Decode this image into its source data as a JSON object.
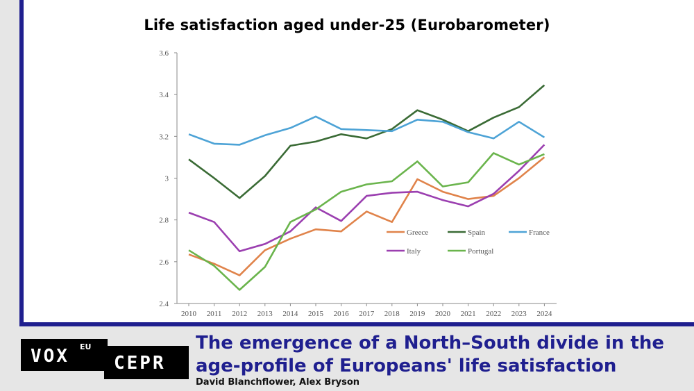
{
  "chart_data": {
    "type": "line",
    "title": "Life satisfaction aged under-25 (Eurobarometer)",
    "x": [
      "2010",
      "2011",
      "2012",
      "2013",
      "2014",
      "2015",
      "2016",
      "2017",
      "2018",
      "2019",
      "2020",
      "2021",
      "2022",
      "2023",
      "2024"
    ],
    "ylim": [
      2.4,
      3.6
    ],
    "yticks": [
      "2.4",
      "2.6",
      "2.8",
      "3",
      "3.2",
      "3.4",
      "3.6"
    ],
    "series": [
      {
        "name": "Greece",
        "color": "#e0834a",
        "values": [
          2.635,
          2.59,
          2.535,
          2.655,
          2.71,
          2.755,
          2.745,
          2.84,
          2.79,
          2.995,
          2.935,
          2.9,
          2.915,
          3.0,
          3.1
        ]
      },
      {
        "name": "Spain",
        "color": "#3a6b35",
        "values": [
          3.09,
          3.0,
          2.905,
          3.01,
          3.155,
          3.175,
          3.21,
          3.19,
          3.235,
          3.325,
          3.28,
          3.225,
          3.29,
          3.34,
          3.445
        ]
      },
      {
        "name": "France",
        "color": "#4da3d6",
        "values": [
          3.21,
          3.165,
          3.16,
          3.205,
          3.24,
          3.295,
          3.235,
          3.23,
          3.225,
          3.28,
          3.27,
          3.22,
          3.19,
          3.27,
          3.195
        ]
      },
      {
        "name": "Italy",
        "color": "#9b3fb0",
        "values": [
          2.835,
          2.79,
          2.65,
          2.685,
          2.745,
          2.86,
          2.795,
          2.915,
          2.93,
          2.935,
          2.895,
          2.865,
          2.925,
          3.035,
          3.16
        ]
      },
      {
        "name": "Portugal",
        "color": "#6ab44c",
        "values": [
          2.655,
          2.58,
          2.465,
          2.575,
          2.79,
          2.85,
          2.935,
          2.97,
          2.985,
          3.08,
          2.96,
          2.98,
          3.12,
          3.065,
          3.115
        ]
      }
    ],
    "legend_position": "inside-lower-right",
    "grid": false
  },
  "footer": {
    "logo_vox": "VOX",
    "logo_eu": "EU",
    "logo_cepr": "CEPR",
    "headline_line1": "The emergence of a North–South divide in the",
    "headline_line2": "age-profile of Europeans' life satisfaction",
    "authors": "David Blanchflower, Alex Bryson"
  }
}
